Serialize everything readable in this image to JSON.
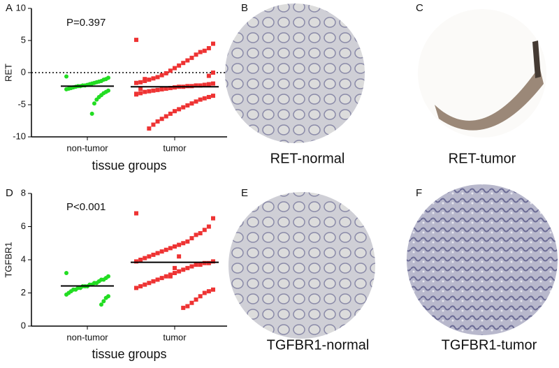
{
  "chart_data": [
    {
      "type": "dotplot",
      "panel_label": "A",
      "annotation": "P=0.397",
      "ylabel": "RET",
      "xlabel": "tissue groups",
      "categories": [
        "non-tumor",
        "tumor"
      ],
      "colors": [
        "#22dd22",
        "#ee3333"
      ],
      "ylim": [
        -10,
        10
      ],
      "yticks": [
        -10,
        -5,
        0,
        5,
        10
      ],
      "reference_line": 0,
      "means": [
        -2.1,
        -2.2
      ],
      "values": [
        [
          -0.6,
          -0.8,
          -1.0,
          -1.1,
          -1.3,
          -1.4,
          -1.5,
          -1.6,
          -1.7,
          -1.8,
          -1.9,
          -2.0,
          -2.0,
          -2.1,
          -2.1,
          -2.2,
          -2.3,
          -2.4,
          -2.5,
          -2.6,
          -2.8,
          -3.0,
          -3.2,
          -3.5,
          -3.8,
          -4.2,
          -4.8,
          -6.4
        ],
        [
          5.1,
          4.5,
          3.8,
          3.4,
          3.2,
          2.8,
          2.3,
          1.9,
          1.5,
          1.1,
          0.7,
          0.3,
          -0.1,
          -0.4,
          -0.7,
          -0.9,
          -1.1,
          -1.3,
          -1.5,
          -1.6,
          -1.7,
          -1.8,
          -1.9,
          -2.0,
          -2.0,
          -2.1,
          -2.1,
          -2.2,
          -2.2,
          -2.3,
          -2.4,
          -2.5,
          -2.6,
          -2.7,
          -2.8,
          -2.9,
          -3.0,
          -3.2,
          -3.4,
          -3.6,
          -3.8,
          -4.0,
          -4.2,
          -4.5,
          -4.8,
          -5.1,
          -5.4,
          -5.7,
          -6.0,
          -6.4,
          -6.8,
          -7.2,
          -7.6,
          -8.1,
          -8.7,
          -1.0,
          -2.5,
          -3.3,
          0.0,
          -0.5
        ]
      ]
    },
    {
      "type": "dotplot",
      "panel_label": "D",
      "annotation": "P<0.001",
      "ylabel": "TGFBR1",
      "xlabel": "tissue groups",
      "categories": [
        "non-tumor",
        "tumor"
      ],
      "colors": [
        "#22dd22",
        "#ee3333"
      ],
      "ylim": [
        0,
        8
      ],
      "yticks": [
        0,
        2,
        4,
        6,
        8
      ],
      "means": [
        2.42,
        3.85
      ],
      "values": [
        [
          3.2,
          3.0,
          2.9,
          2.8,
          2.8,
          2.7,
          2.6,
          2.6,
          2.5,
          2.5,
          2.4,
          2.4,
          2.4,
          2.3,
          2.3,
          2.2,
          2.2,
          2.1,
          2.0,
          1.9,
          1.8,
          1.7,
          1.5,
          1.3
        ],
        [
          6.8,
          6.5,
          6.0,
          5.8,
          5.6,
          5.5,
          5.3,
          5.1,
          5.0,
          4.9,
          4.8,
          4.7,
          4.6,
          4.5,
          4.4,
          4.3,
          4.2,
          4.1,
          4.0,
          3.9,
          3.9,
          3.8,
          3.8,
          3.7,
          3.7,
          3.6,
          3.5,
          3.4,
          3.3,
          3.2,
          3.1,
          3.0,
          2.9,
          2.8,
          2.7,
          2.6,
          2.5,
          2.4,
          2.3,
          2.2,
          2.1,
          2.0,
          1.8,
          1.6,
          1.4,
          1.2,
          1.1,
          4.2,
          3.5,
          3.0
        ]
      ]
    }
  ],
  "image_panels": [
    {
      "label": "B",
      "caption": "RET-normal"
    },
    {
      "label": "C",
      "caption": "RET-tumor"
    },
    {
      "label": "E",
      "caption": "TGFBR1-normal"
    },
    {
      "label": "F",
      "caption": "TGFBR1-tumor"
    }
  ]
}
